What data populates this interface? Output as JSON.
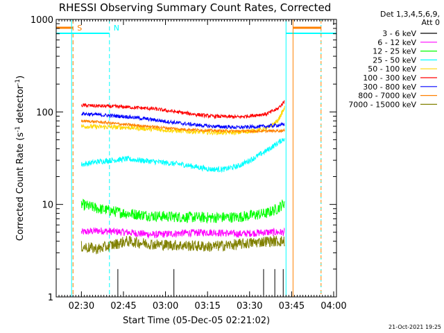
{
  "chart_data": {
    "type": "line",
    "title": "RHESSI Observing Summary Count Rates, Corrected",
    "xlabel": "Start Time (05-Dec-05 02:21:02)",
    "ylabel": "Corrected Count Rate (s",
    "ylabel_sup1": "-1",
    "ylabel_mid": " detector",
    "ylabel_sup2": "-1",
    "ylabel_end": ")",
    "xlim_minutes": [
      0,
      100
    ],
    "ylim": [
      1,
      1000
    ],
    "yscale": "log",
    "x_ticks": [
      {
        "label": "02:30",
        "minute": 9
      },
      {
        "label": "02:45",
        "minute": 24
      },
      {
        "label": "03:00",
        "minute": 39
      },
      {
        "label": "03:15",
        "minute": 54
      },
      {
        "label": "03:30",
        "minute": 69
      },
      {
        "label": "03:45",
        "minute": 84
      },
      {
        "label": "04:00",
        "minute": 99
      }
    ],
    "y_ticks": [
      {
        "label": "1",
        "value": 1
      },
      {
        "label": "10",
        "value": 10
      },
      {
        "label": "100",
        "value": 100
      },
      {
        "label": "1000",
        "value": 1000
      }
    ],
    "legend_header": [
      "Det 1,3,4,5,6,9,",
      "Att 0"
    ],
    "legend_placement": "right",
    "series": [
      {
        "name": "3 - 6 keV",
        "color": "#000000",
        "x": [
          18,
          20,
          22,
          26,
          30,
          38,
          42,
          46,
          52,
          58,
          62,
          66,
          70,
          72,
          74,
          76,
          78,
          80,
          81
        ],
        "y": [
          1.0,
          1.0,
          2.0,
          1.0,
          1.0,
          1.0,
          2.0,
          1.0,
          1.0,
          1.0,
          1.0,
          1.0,
          1.0,
          1.0,
          2.0,
          1.0,
          2.0,
          1.0,
          2.0
        ]
      },
      {
        "name": "6 - 12 keV",
        "color": "#ff00ff",
        "x": [
          9,
          15,
          25,
          35,
          45,
          55,
          65,
          75,
          81.5
        ],
        "y": [
          5.0,
          5.2,
          5.0,
          4.7,
          4.9,
          5.0,
          4.8,
          5.0,
          5.0
        ]
      },
      {
        "name": "12 - 25 keV",
        "color": "#00ff00",
        "x": [
          9,
          15,
          25,
          35,
          45,
          55,
          65,
          75,
          79,
          81.5
        ],
        "y": [
          10.0,
          9.0,
          8.0,
          7.5,
          7.3,
          7.2,
          7.3,
          8.0,
          9.0,
          10.5
        ]
      },
      {
        "name": "25 - 50 keV",
        "color": "#00ffff",
        "x": [
          9,
          15,
          25,
          35,
          45,
          55,
          60,
          65,
          70,
          75,
          79,
          81.5
        ],
        "y": [
          27,
          29,
          31,
          29,
          27,
          24,
          24,
          26,
          31,
          38,
          46,
          52
        ]
      },
      {
        "name": "50 - 100 keV",
        "color": "#ffd700",
        "x": [
          9,
          15,
          25,
          35,
          45,
          55,
          65,
          75,
          79,
          81.5
        ],
        "y": [
          70,
          69,
          68,
          65,
          62,
          60,
          60,
          65,
          80,
          110
        ]
      },
      {
        "name": "100 - 300 keV",
        "color": "#ff0000",
        "x": [
          9,
          15,
          25,
          35,
          45,
          55,
          65,
          75,
          79,
          81.5
        ],
        "y": [
          118,
          116,
          113,
          108,
          98,
          90,
          88,
          95,
          108,
          130
        ]
      },
      {
        "name": "300 - 800 keV",
        "color": "#0000ff",
        "x": [
          9,
          15,
          25,
          35,
          45,
          55,
          65,
          75,
          81.5
        ],
        "y": [
          96,
          93,
          89,
          82,
          75,
          70,
          68,
          70,
          73
        ]
      },
      {
        "name": "800 - 7000 keV",
        "color": "#ff8000",
        "x": [
          9,
          15,
          25,
          35,
          45,
          55,
          65,
          75,
          81.5
        ],
        "y": [
          80,
          78,
          73,
          69,
          65,
          63,
          62,
          62,
          63
        ]
      },
      {
        "name": "7000 - 15000 keV",
        "color": "#808000",
        "x": [
          9,
          15,
          25,
          35,
          45,
          55,
          65,
          75,
          81.5
        ],
        "y": [
          3.5,
          3.3,
          4.0,
          3.7,
          3.6,
          3.5,
          3.7,
          4.0,
          4.0
        ]
      }
    ],
    "flags": [
      {
        "label": "S",
        "color": "#ff8000",
        "minute": 6
      },
      {
        "label": "N",
        "color": "#00ffff",
        "minute": 19
      }
    ],
    "timestamp": "21-Oct-2021 19:25"
  }
}
